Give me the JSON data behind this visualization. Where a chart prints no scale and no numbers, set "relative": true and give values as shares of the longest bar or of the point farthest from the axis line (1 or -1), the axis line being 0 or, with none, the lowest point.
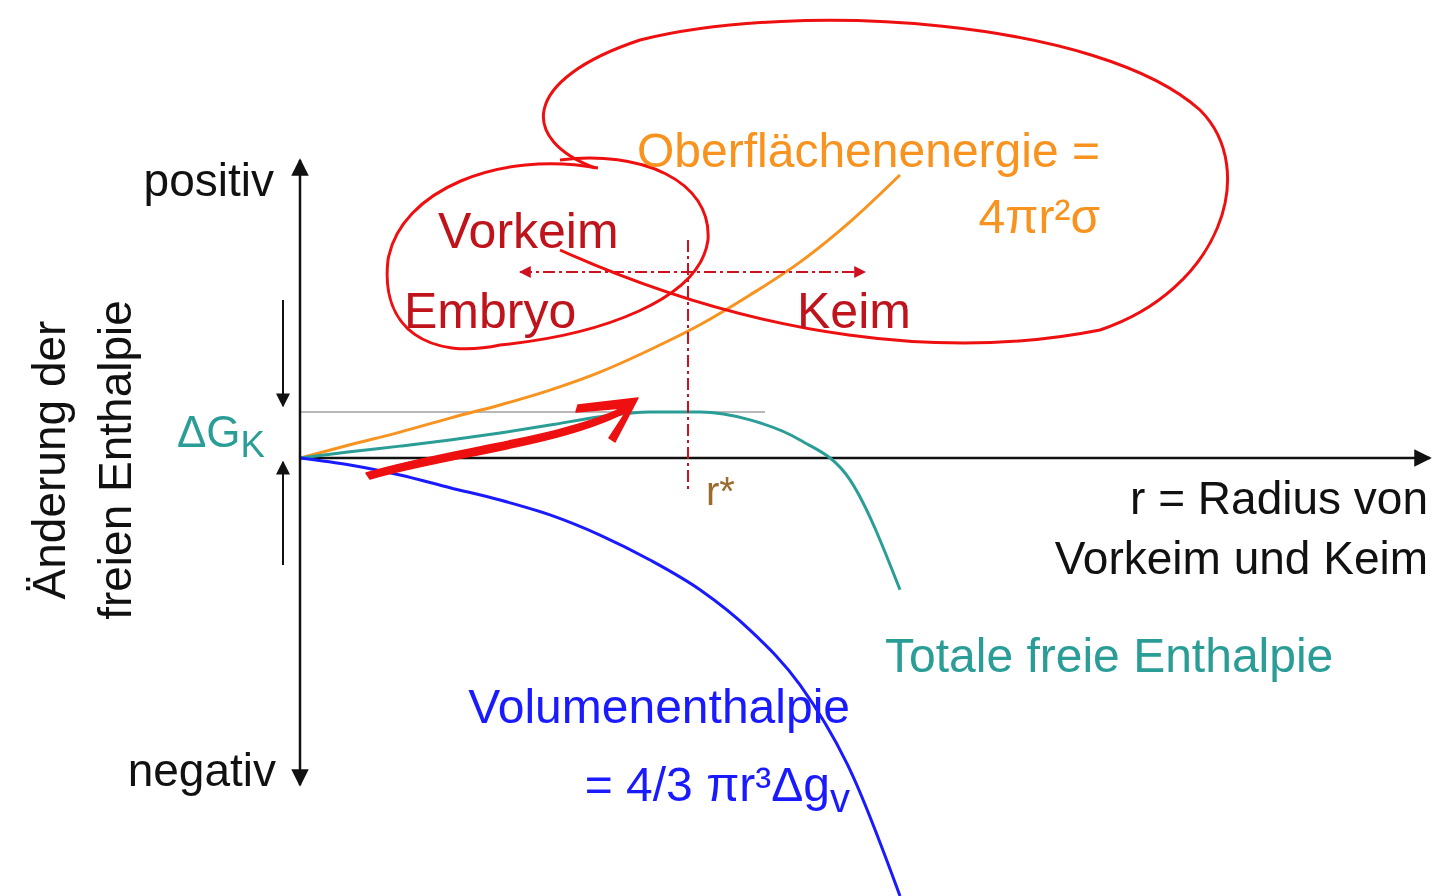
{
  "chart_data": {
    "type": "line",
    "relative": true,
    "xlabel": "r = Radius von Vorkeim und Keim",
    "ylabel": "Änderung der freien Enthalpie",
    "categories": [
      null,
      null,
      null,
      null,
      null,
      null,
      null,
      null,
      null,
      null,
      null,
      null,
      null
    ],
    "series": [
      {
        "name": "Oberflächenenergie = 4πr²σ",
        "color": "#f7931e",
        "values": [
          0,
          0.03,
          0.059,
          0.091,
          0.121,
          0.155,
          0.196,
          0.247,
          0.304,
          0.372,
          0.447,
          0.539,
          0.646
        ]
      },
      {
        "name": "Totale freie Enthalpie",
        "color": "#2a9d96",
        "values": [
          0,
          0.014,
          0.027,
          0.041,
          0.057,
          0.075,
          0.094,
          0.105,
          0.105,
          0.087,
          0.041,
          -0.05,
          -0.301
        ]
      },
      {
        "name": "Volumenenthalpie = 4/3 πr³Δg$_{v}$",
        "color": "#1a1aff",
        "values": [
          0,
          -0.016,
          -0.039,
          -0.068,
          -0.096,
          -0.13,
          -0.176,
          -0.233,
          -0.301,
          -0.393,
          -0.518,
          -0.712,
          -1
        ]
      }
    ],
    "ref_lines": [
      {
        "axis": "y",
        "value": 0.105,
        "label": "ΔG$_{K}$",
        "color": "#a0a0a0"
      }
    ],
    "annotations": [
      "positiv",
      "negativ",
      "Vorkeim",
      "Embryo",
      "Keim",
      "r*"
    ]
  }
}
